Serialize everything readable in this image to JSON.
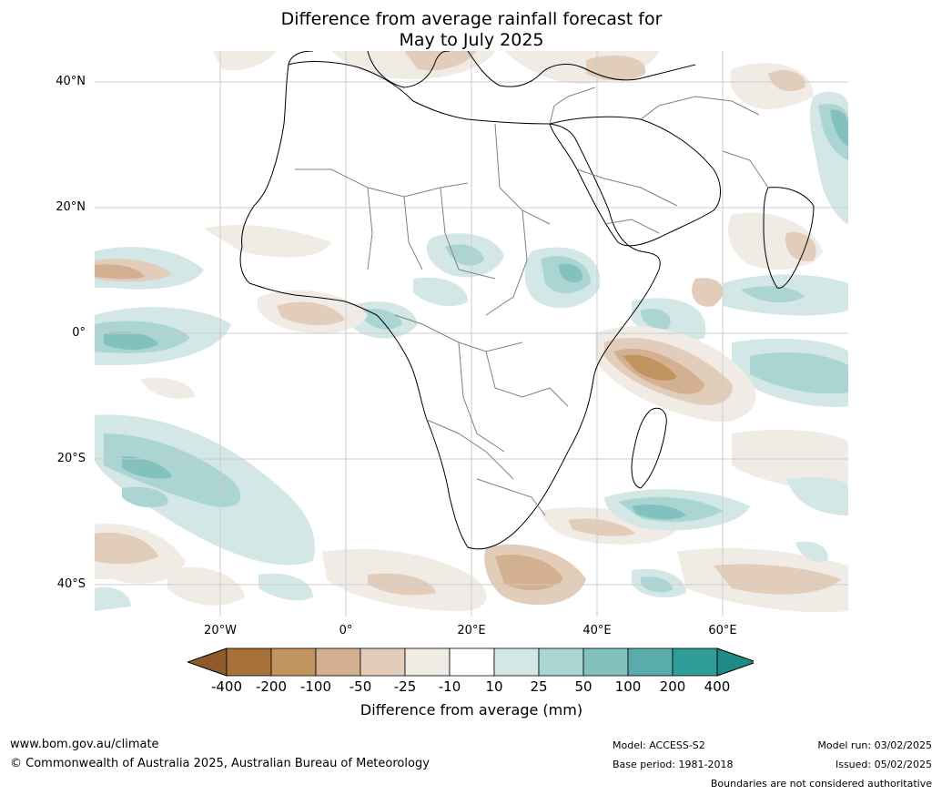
{
  "title_line1": "Difference from average rainfall forecast for",
  "title_line2": "May to July 2025",
  "lat_labels": [
    "40°N",
    "20°N",
    "0°",
    "20°S",
    "40°S"
  ],
  "lon_labels": [
    "20°W",
    "0°",
    "20°E",
    "40°E",
    "60°E"
  ],
  "colorbar": {
    "title": "Difference from average (mm)",
    "ticks": [
      "-400",
      "-200",
      "-100",
      "-50",
      "-25",
      "-10",
      "10",
      "25",
      "50",
      "100",
      "200",
      "400"
    ],
    "colors": [
      "#a8703a",
      "#c0935f",
      "#d3b08f",
      "#e2cdbb",
      "#f1ebe5",
      "#ffffff",
      "#d3e8e6",
      "#abd5d3",
      "#83c1be",
      "#5aacaa",
      "#309c98"
    ]
  },
  "footer": {
    "website": "www.bom.gov.au/climate",
    "copyright": "© Commonwealth of Australia 2025, Australian Bureau of Meteorology",
    "model": "Model: ACCESS-S2",
    "base_period": "Base period: 1981-2018",
    "model_run": "Model run: 03/02/2025",
    "issued": "Issued: 05/02/2025",
    "disclaimer": "Boundaries are not considered authoritative"
  }
}
